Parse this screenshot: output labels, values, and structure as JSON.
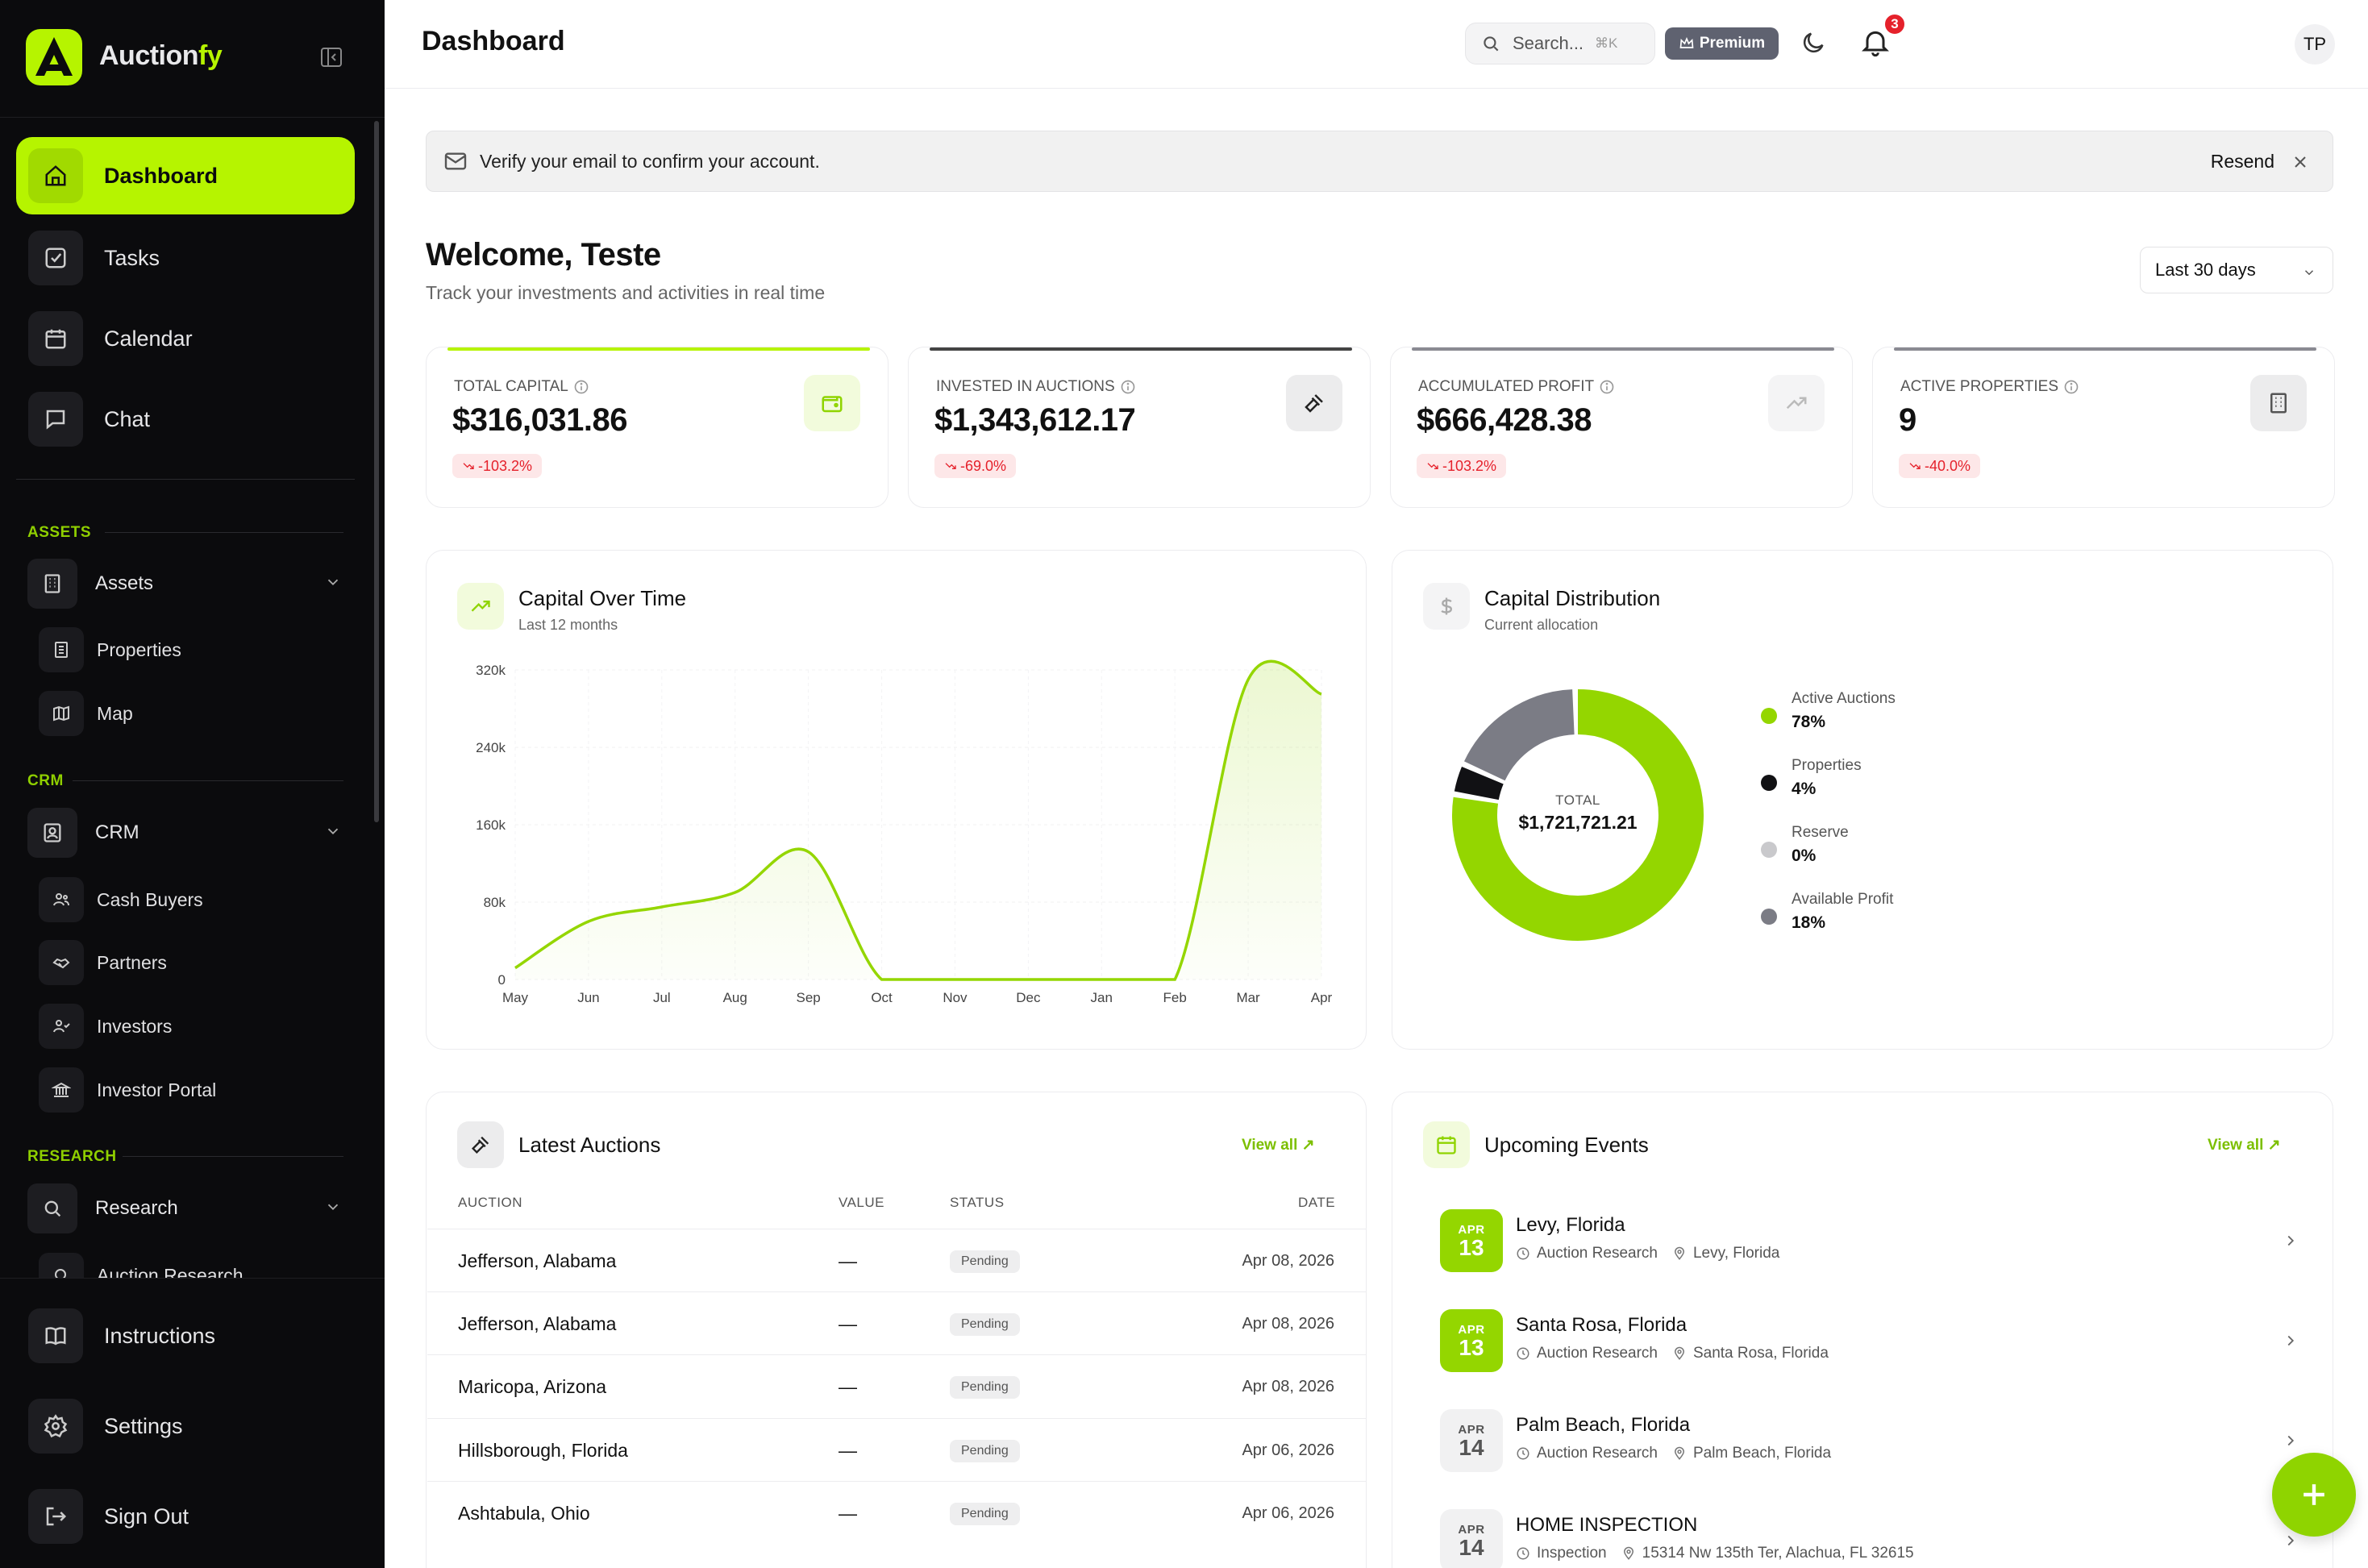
{
  "app": {
    "brand_a": "Auction",
    "brand_b": "fy"
  },
  "sidebar": {
    "main": [
      {
        "label": "Dashboard"
      },
      {
        "label": "Tasks"
      },
      {
        "label": "Calendar"
      },
      {
        "label": "Chat"
      }
    ],
    "sections": {
      "assets": "ASSETS",
      "crm": "CRM",
      "research": "RESEARCH"
    },
    "assets": {
      "label": "Assets",
      "children": [
        {
          "label": "Properties"
        },
        {
          "label": "Map"
        }
      ]
    },
    "crm": {
      "label": "CRM",
      "children": [
        {
          "label": "Cash Buyers"
        },
        {
          "label": "Partners"
        },
        {
          "label": "Investors"
        },
        {
          "label": "Investor Portal"
        }
      ]
    },
    "research": {
      "label": "Research",
      "children": [
        {
          "label": "Auction Research"
        }
      ]
    },
    "footer": [
      {
        "label": "Instructions"
      },
      {
        "label": "Settings"
      },
      {
        "label": "Sign Out"
      }
    ]
  },
  "header": {
    "title": "Dashboard",
    "search_placeholder": "Search...",
    "search_kbd": "⌘K",
    "premium": "Premium",
    "notifications": "3",
    "avatar": "TP"
  },
  "verify": {
    "text": "Verify your email to confirm your account.",
    "action": "Resend"
  },
  "welcome": {
    "title": "Welcome, Teste",
    "subtitle": "Track your investments and activities in real time",
    "period": "Last 30 days"
  },
  "kpis": [
    {
      "label": "TOTAL CAPITAL",
      "value": "$316,031.86",
      "change": "-103.2%"
    },
    {
      "label": "INVESTED IN AUCTIONS",
      "value": "$1,343,612.17",
      "change": "-69.0%"
    },
    {
      "label": "ACCUMULATED PROFIT",
      "value": "$666,428.38",
      "change": "-103.2%"
    },
    {
      "label": "ACTIVE PROPERTIES",
      "value": "9",
      "change": "-40.0%"
    }
  ],
  "capital_chart": {
    "title": "Capital Over Time",
    "subtitle": "Last 12 months"
  },
  "distribution": {
    "title": "Capital Distribution",
    "subtitle": "Current allocation",
    "total_label": "TOTAL",
    "total_value": "$1,721,721.21",
    "legend": [
      {
        "name": "Active Auctions",
        "pct": "78%",
        "color": "#94d600"
      },
      {
        "name": "Properties",
        "pct": "4%",
        "color": "#111114"
      },
      {
        "name": "Reserve",
        "pct": "0%",
        "color": "#c9c9cc"
      },
      {
        "name": "Available Profit",
        "pct": "18%",
        "color": "#7b7c85"
      }
    ]
  },
  "auctions": {
    "title": "Latest Auctions",
    "view_all": "View all",
    "headers": [
      "AUCTION",
      "VALUE",
      "STATUS",
      "DATE"
    ],
    "rows": [
      {
        "auction": "Jefferson, Alabama",
        "value": "—",
        "status": "Pending",
        "date": "Apr 08, 2026"
      },
      {
        "auction": "Jefferson, Alabama",
        "value": "—",
        "status": "Pending",
        "date": "Apr 08, 2026"
      },
      {
        "auction": "Maricopa, Arizona",
        "value": "—",
        "status": "Pending",
        "date": "Apr 08, 2026"
      },
      {
        "auction": "Hillsborough, Florida",
        "value": "—",
        "status": "Pending",
        "date": "Apr 06, 2026"
      },
      {
        "auction": "Ashtabula, Ohio",
        "value": "—",
        "status": "Pending",
        "date": "Apr 06, 2026"
      }
    ]
  },
  "events": {
    "title": "Upcoming Events",
    "view_all": "View all",
    "items": [
      {
        "month": "APR",
        "day": "13",
        "title": "Levy, Florida",
        "type": "Auction Research",
        "location": "Levy, Florida"
      },
      {
        "month": "APR",
        "day": "13",
        "title": "Santa Rosa, Florida",
        "type": "Auction Research",
        "location": "Santa Rosa, Florida"
      },
      {
        "month": "APR",
        "day": "14",
        "title": "Palm Beach, Florida",
        "type": "Auction Research",
        "location": "Palm Beach, Florida"
      },
      {
        "month": "APR",
        "day": "14",
        "title": "HOME INSPECTION",
        "type": "Inspection",
        "location": "15314 Nw 135th Ter, Alachua, FL 32615"
      }
    ]
  },
  "chart_data": {
    "type": "area",
    "categories": [
      "May",
      "Jun",
      "Jul",
      "Aug",
      "Sep",
      "Oct",
      "Nov",
      "Dec",
      "Jan",
      "Feb",
      "Mar",
      "Apr"
    ],
    "series": [
      {
        "values": [
          12000,
          60000,
          75000,
          90000,
          132000,
          0,
          0,
          0,
          0,
          0,
          310000,
          295000
        ]
      }
    ],
    "y_ticks": [
      "0",
      "80k",
      "160k",
      "240k",
      "320k"
    ],
    "ylim": [
      0,
      320000
    ],
    "grid": true,
    "color": "#94d600"
  }
}
